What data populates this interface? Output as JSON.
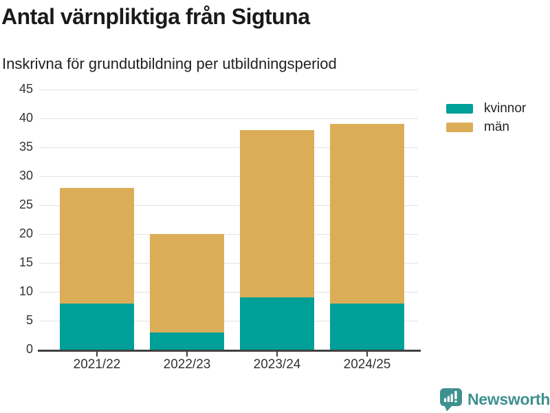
{
  "header": {
    "title": "Antal värnpliktiga från Sigtuna",
    "subtitle": "Inskrivna för grundutbildning per utbildningsperiod"
  },
  "chart_data": {
    "type": "bar",
    "stacked": true,
    "title": "Antal värnpliktiga från Sigtuna",
    "subtitle": "Inskrivna för grundutbildning per utbildningsperiod",
    "categories": [
      "2021/22",
      "2022/23",
      "2023/24",
      "2024/25"
    ],
    "series": [
      {
        "name": "kvinnor",
        "color": "#00A099",
        "values": [
          8,
          3,
          9,
          8
        ]
      },
      {
        "name": "män",
        "color": "#DCAD58",
        "values": [
          20,
          17,
          29,
          31
        ]
      }
    ],
    "stack_totals": [
      28,
      20,
      38,
      39
    ],
    "xlabel": "",
    "ylabel": "",
    "ylim": [
      0,
      45
    ],
    "yticks": [
      0,
      5,
      10,
      15,
      20,
      25,
      30,
      35,
      40,
      45
    ],
    "grid": true,
    "legend_position": "top-right"
  },
  "footer": {
    "brand_name": "Newsworthy"
  },
  "colors": {
    "kvinnor": "#00A099",
    "man": "#DCAD58",
    "brand": "#3E918F",
    "gridline": "#E2E2E2",
    "axis": "#404040",
    "heading_text": "#1A1A1A",
    "tick_text": "#333333"
  }
}
